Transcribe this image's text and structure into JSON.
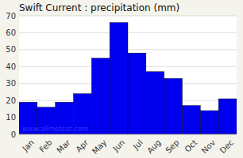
{
  "chart_data": {
    "type": "bar",
    "title": "Swift Current : precipitation (mm)",
    "categories": [
      "Jan",
      "Feb",
      "Mar",
      "Apr",
      "May",
      "Jun",
      "Jul",
      "Aug",
      "Sep",
      "Oct",
      "Nov",
      "Dec"
    ],
    "values": [
      19,
      16,
      19,
      24,
      45,
      66,
      48,
      37,
      33,
      17,
      14,
      21
    ],
    "color": "#0000EE",
    "ylim": [
      0,
      70
    ],
    "yticks": [
      0,
      10,
      20,
      30,
      40,
      50,
      60,
      70
    ],
    "grid": true,
    "annotations": [
      "www.allmetsat.com"
    ]
  }
}
